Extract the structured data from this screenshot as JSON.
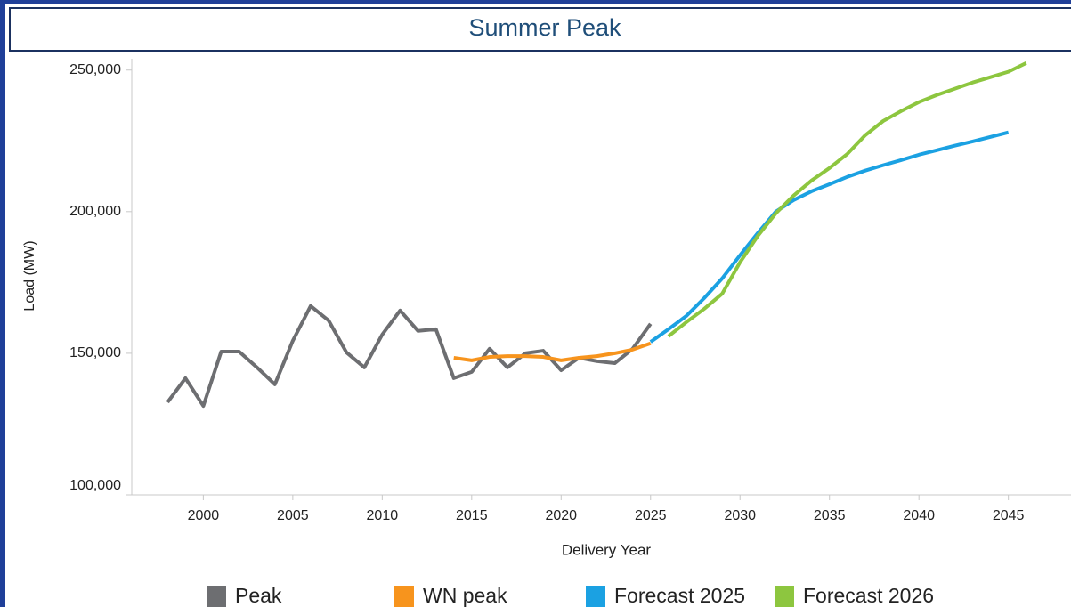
{
  "chart_data": {
    "type": "line",
    "title": "Summer Peak",
    "x_label": "Delivery Year",
    "y_label": "Load (MW)",
    "xlim": [
      1996,
      2048.5
    ],
    "ylim": [
      100000,
      254000
    ],
    "xticks": [
      2000,
      2005,
      2010,
      2015,
      2020,
      2025,
      2030,
      2035,
      2040,
      2045
    ],
    "yticks": [
      {
        "value": 100000,
        "label": "100,000"
      },
      {
        "value": 150000,
        "label": "150,000"
      },
      {
        "value": 200000,
        "label": "200,000"
      },
      {
        "value": 250000,
        "label": "250,000"
      }
    ],
    "grid": false,
    "legend": "bottom",
    "series": [
      {
        "name": "Peak",
        "color": "#6d6e71",
        "x": [
          1998,
          1999,
          2000,
          2001,
          2002,
          2003,
          2004,
          2005,
          2006,
          2007,
          2008,
          2009,
          2010,
          2011,
          2012,
          2013,
          2014,
          2015,
          2016,
          2017,
          2018,
          2019,
          2020,
          2021,
          2022,
          2023,
          2024,
          2025
        ],
        "values": [
          132700,
          141200,
          131400,
          150600,
          150600,
          145000,
          139000,
          154400,
          166700,
          161600,
          150300,
          145000,
          156600,
          165100,
          157900,
          158500,
          141200,
          143400,
          151600,
          145000,
          150000,
          150900,
          144000,
          148400,
          147200,
          146500,
          151600,
          160400
        ]
      },
      {
        "name": "WN peak",
        "color": "#f7941d",
        "x": [
          2014,
          2015,
          2016,
          2017,
          2018,
          2019,
          2020,
          2021,
          2022,
          2023,
          2024,
          2025
        ],
        "values": [
          148400,
          147500,
          148700,
          149000,
          149000,
          148700,
          147500,
          148400,
          149000,
          150000,
          151300,
          153500
        ]
      },
      {
        "name": "Forecast 2025",
        "color": "#1ba1e2",
        "x": [
          2025,
          2026,
          2027,
          2028,
          2029,
          2030,
          2031,
          2032,
          2033,
          2034,
          2035,
          2036,
          2037,
          2038,
          2039,
          2040,
          2041,
          2042,
          2043,
          2044,
          2045
        ],
        "values": [
          154000,
          158500,
          163200,
          169500,
          176400,
          184600,
          192500,
          200000,
          204100,
          207200,
          209700,
          212300,
          214500,
          216400,
          218200,
          220100,
          221700,
          223300,
          224800,
          226400,
          228000
        ]
      },
      {
        "name": "Forecast 2026",
        "color": "#8dc63f",
        "x": [
          2026,
          2027,
          2028,
          2029,
          2030,
          2031,
          2032,
          2033,
          2034,
          2035,
          2036,
          2037,
          2038,
          2039,
          2040,
          2041,
          2042,
          2043,
          2044,
          2045,
          2046
        ],
        "values": [
          156000,
          161000,
          165700,
          171000,
          182100,
          191500,
          199400,
          205700,
          211000,
          215400,
          220400,
          227000,
          232000,
          235500,
          238700,
          241200,
          243400,
          245600,
          247500,
          249400,
          252500
        ]
      }
    ]
  }
}
